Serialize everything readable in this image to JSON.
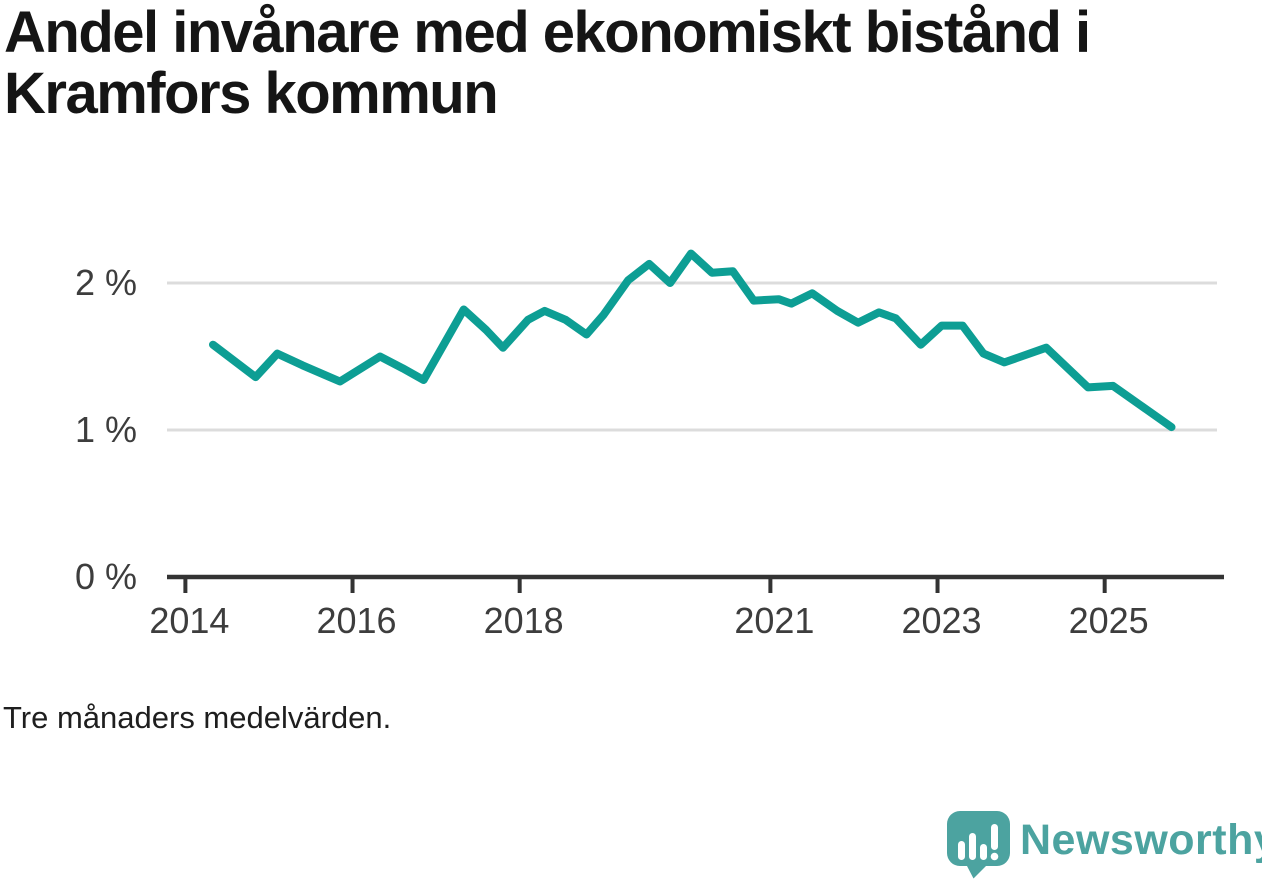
{
  "title": "Andel invånare med ekonomiskt bistånd i Kramfors kommun",
  "footnote": "Tre månaders medelvärden.",
  "branding": {
    "wordmark": "Newsworthy",
    "teal": "#4ca3a0"
  },
  "chart_data": {
    "type": "line",
    "title": "Andel invånare med ekonomiskt bistånd i Kramfors kommun",
    "note": "Tre månaders medelvärden.",
    "unit": "%",
    "grid": "horizontal-only",
    "legend": "none",
    "line_color": "#0d9e94",
    "x_ticks": [
      2014,
      2016,
      2018,
      2021,
      2023,
      2025
    ],
    "y_ticks": [
      {
        "value": 2,
        "label": "2 %"
      },
      {
        "value": 1,
        "label": "1 %"
      },
      {
        "value": 0,
        "label": "0 %"
      }
    ],
    "x_range": [
      2013.78,
      2026.38
    ],
    "y_range": [
      0,
      2.29
    ],
    "series": [
      {
        "name": "Andel invånare med ekonomiskt bistånd, Kramfors kommun",
        "points": [
          [
            2014.33,
            1.58
          ],
          [
            2014.84,
            1.36
          ],
          [
            2015.1,
            1.52
          ],
          [
            2015.4,
            1.44
          ],
          [
            2015.85,
            1.33
          ],
          [
            2016.33,
            1.5
          ],
          [
            2016.6,
            1.42
          ],
          [
            2016.85,
            1.34
          ],
          [
            2017.33,
            1.82
          ],
          [
            2017.6,
            1.68
          ],
          [
            2017.8,
            1.56
          ],
          [
            2018.1,
            1.75
          ],
          [
            2018.3,
            1.81
          ],
          [
            2018.55,
            1.75
          ],
          [
            2018.8,
            1.65
          ],
          [
            2019.0,
            1.78
          ],
          [
            2019.3,
            2.02
          ],
          [
            2019.55,
            2.13
          ],
          [
            2019.8,
            2.0
          ],
          [
            2020.05,
            2.2
          ],
          [
            2020.3,
            2.07
          ],
          [
            2020.55,
            2.08
          ],
          [
            2020.8,
            1.88
          ],
          [
            2021.1,
            1.89
          ],
          [
            2021.25,
            1.86
          ],
          [
            2021.5,
            1.93
          ],
          [
            2021.8,
            1.81
          ],
          [
            2022.05,
            1.73
          ],
          [
            2022.3,
            1.8
          ],
          [
            2022.5,
            1.76
          ],
          [
            2022.8,
            1.58
          ],
          [
            2023.05,
            1.71
          ],
          [
            2023.3,
            1.71
          ],
          [
            2023.55,
            1.52
          ],
          [
            2023.8,
            1.46
          ],
          [
            2024.3,
            1.56
          ],
          [
            2024.8,
            1.29
          ],
          [
            2025.1,
            1.3
          ],
          [
            2025.8,
            1.02
          ]
        ]
      }
    ]
  }
}
